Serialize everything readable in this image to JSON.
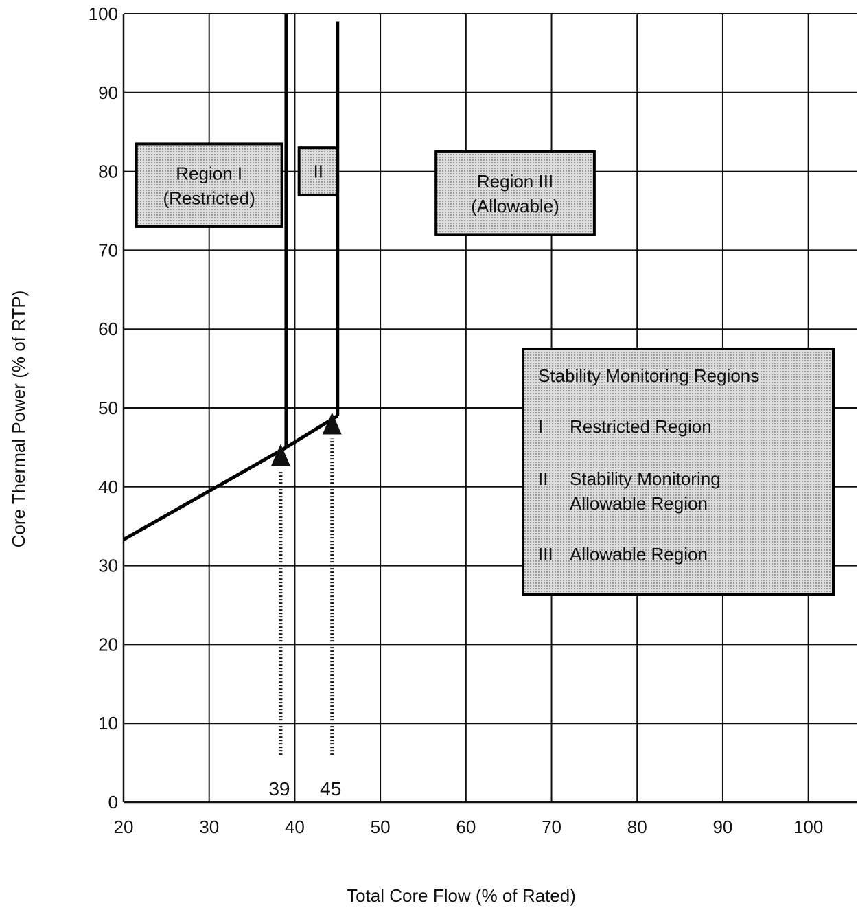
{
  "chart_data": {
    "type": "line",
    "title": "",
    "xlabel": "Total Core Flow (% of Rated)",
    "ylabel": "Core Thermal Power (% of RTP)",
    "xlim": [
      20,
      105
    ],
    "ylim": [
      0,
      100
    ],
    "xticks": [
      20,
      30,
      40,
      50,
      60,
      70,
      80,
      90,
      100
    ],
    "yticks": [
      0,
      10,
      20,
      30,
      40,
      50,
      60,
      70,
      80,
      90,
      100
    ],
    "grid": true,
    "series": [
      {
        "values": [
          {
            "x": 20,
            "y": 33.3
          },
          {
            "x": 39,
            "y": 45
          }
        ]
      },
      {
        "values": [
          {
            "x": 39,
            "y": 45
          },
          {
            "x": 45,
            "y": 49
          }
        ]
      },
      {
        "values": [
          {
            "x": 39,
            "y": 45
          },
          {
            "x": 39,
            "y": 100
          }
        ]
      },
      {
        "values": [
          {
            "x": 45,
            "y": 49
          },
          {
            "x": 45,
            "y": 99
          }
        ]
      }
    ],
    "flow_markers": [
      {
        "x": 39,
        "label": "39",
        "y_from": 6,
        "y_to": 43
      },
      {
        "x": 45,
        "label": "45",
        "y_from": 6,
        "y_to": 47
      }
    ],
    "region_labels": [
      {
        "line1": "Region I",
        "line2": "(Restricted)",
        "x1": 21.5,
        "x2": 38.5,
        "y1": 73,
        "y2": 83.5
      },
      {
        "line1": "II",
        "line2": "",
        "x1": 40.5,
        "x2": 45,
        "y1": 77,
        "y2": 83
      },
      {
        "line1": "Region III",
        "line2": "(Allowable)",
        "x1": 56.5,
        "x2": 75,
        "y1": 72,
        "y2": 82.5
      }
    ],
    "legend": {
      "position": "right",
      "title": "Stability Monitoring Regions",
      "entries": [
        {
          "code": "I",
          "text": "Restricted Region"
        },
        {
          "code": "II",
          "text": "Stability Monitoring Allowable Region"
        },
        {
          "code": "III",
          "text": "Allowable Region"
        }
      ]
    }
  }
}
